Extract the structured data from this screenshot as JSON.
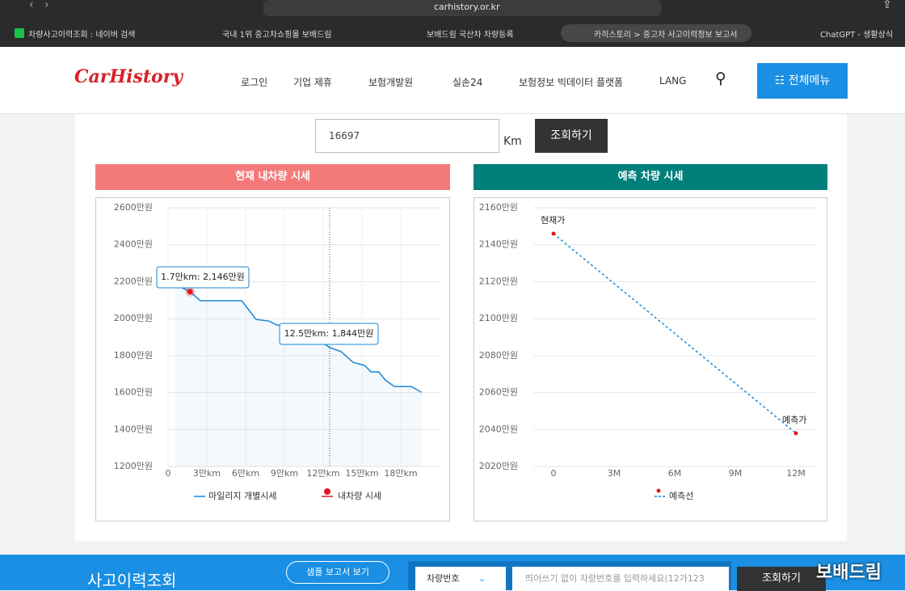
{
  "browser": {
    "url": "carhistory.or.kr",
    "bookmarks": [
      "차량사고이력조회 : 네이버 검색",
      "국내 1위 중고차쇼핑몰 보배드림",
      "보배드림 국산차 차량등록",
      "카히스토리 > 중고차 사고이력정보 보고서",
      "ChatGPT - 생활상식"
    ]
  },
  "header": {
    "logo": "CarHistory",
    "nav": [
      "로그인",
      "기업 제휴",
      "보험개발원",
      "실손24",
      "보험정보 빅데이터 플랫폼",
      "LANG"
    ],
    "menu_button": "전체메뉴"
  },
  "search": {
    "value": "16697",
    "unit": "Km",
    "button": "조회하기"
  },
  "chart_data": [
    {
      "type": "line",
      "title": "현재 내차량 시세",
      "x": [
        0.6,
        1.7,
        2.5,
        5.7,
        6.8,
        7.8,
        8.4,
        9.7,
        10.8,
        12.5,
        13.4,
        14.3,
        15.2,
        15.7,
        16.3,
        16.8,
        17.5,
        18.8,
        19.6
      ],
      "series": [
        {
          "name": "마일리지 개별시세",
          "color": "#1a87d6",
          "values": [
            2184,
            2146,
            2097,
            2097,
            1996,
            1987,
            1966,
            1952,
            1922,
            1844,
            1821,
            1764,
            1747,
            1712,
            1712,
            1668,
            1633,
            1633,
            1602
          ]
        },
        {
          "name": "내차량 시세",
          "color": "#e0161e",
          "values": [
            null,
            2146,
            null,
            null,
            null,
            null,
            null,
            null,
            null,
            null,
            null,
            null,
            null,
            null,
            null,
            null,
            null,
            null,
            null
          ]
        }
      ],
      "annotations": [
        "1.7만km: 2,146만원",
        "12.5만km: 1,844만원"
      ],
      "xlim": [
        0,
        21
      ],
      "xticks": [
        0,
        {
          "value": 3,
          "label": "3만km"
        },
        {
          "value": 6,
          "label": "6만km"
        },
        {
          "value": 9,
          "label": "9만km"
        },
        {
          "value": 12,
          "label": "12만km"
        },
        {
          "value": 15,
          "label": "15만km"
        },
        {
          "value": 18,
          "label": "18만km"
        }
      ],
      "ylim": [
        1200,
        2600
      ],
      "yticks": [
        {
          "value": 1200,
          "label": "1200만원"
        },
        {
          "value": 1400,
          "label": "1400만원"
        },
        {
          "value": 1600,
          "label": "1600만원"
        },
        {
          "value": 1800,
          "label": "1800만원"
        },
        {
          "value": 2000,
          "label": "2000만원"
        },
        {
          "value": 2200,
          "label": "2200만원"
        },
        {
          "value": 2400,
          "label": "2400만원"
        },
        {
          "value": 2600,
          "label": "2600만원"
        }
      ],
      "grid": true,
      "area": true
    },
    {
      "type": "line",
      "title": "예측 차량 시세",
      "x": [
        0,
        12
      ],
      "series": [
        {
          "name": "예측선",
          "color": "#1a87d6",
          "marker_color": "#e0161e",
          "dashed": true,
          "values": [
            2146,
            2038
          ]
        }
      ],
      "annotations": [
        "현재가",
        "예측가"
      ],
      "xlim": [
        -1,
        13
      ],
      "xticks": [
        0,
        {
          "value": 3,
          "label": "3M"
        },
        {
          "value": 6,
          "label": "6M"
        },
        {
          "value": 9,
          "label": "9M"
        },
        {
          "value": 12,
          "label": "12M"
        }
      ],
      "ylim": [
        2020,
        2160
      ],
      "yticks": [
        {
          "value": 2020,
          "label": "2020만원"
        },
        {
          "value": 2040,
          "label": "2040만원"
        },
        {
          "value": 2060,
          "label": "2060만원"
        },
        {
          "value": 2080,
          "label": "2080만원"
        },
        {
          "value": 2100,
          "label": "2100만원"
        },
        {
          "value": 2120,
          "label": "2120만원"
        },
        {
          "value": 2140,
          "label": "2140만원"
        },
        {
          "value": 2160,
          "label": "2160만원"
        }
      ],
      "grid": true,
      "area": false
    }
  ],
  "bottom": {
    "title": "사고이력조회",
    "sample_button": "샘플 보고서 보기",
    "select": "차량번호",
    "placeholder": "띄어쓰기 없이 차량번호를 입력하세요(12가123",
    "button": "조회하기",
    "watermark": "보배드림"
  }
}
